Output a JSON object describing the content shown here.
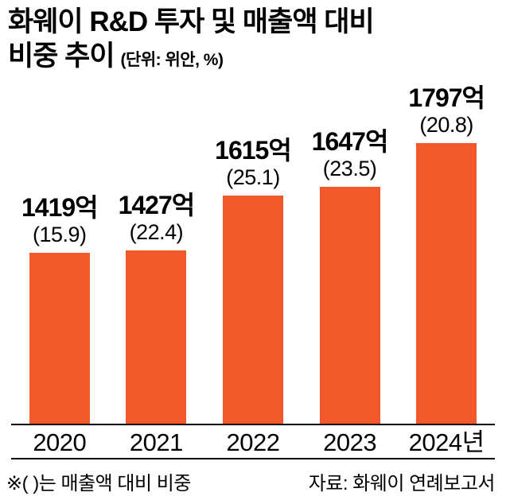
{
  "header": {
    "title_line1": "화웨이 R&D 투자 및 매출액 대비",
    "title_line2": "비중 추이",
    "unit_note": "(단위: 위안, %)"
  },
  "chart_data": {
    "type": "bar",
    "title": "화웨이 R&D 투자 및 매출액 대비 비중 추이",
    "unit": "위안, %",
    "categories": [
      "2020",
      "2021",
      "2022",
      "2023",
      "2024년"
    ],
    "values": [
      1419,
      1427,
      1615,
      1647,
      1797
    ],
    "value_labels": [
      "1419억",
      "1427억",
      "1615억",
      "1647억",
      "1797억"
    ],
    "percentages": [
      15.9,
      22.4,
      25.1,
      23.5,
      20.8
    ],
    "percent_labels": [
      "(15.9)",
      "(22.4)",
      "(25.1)",
      "(23.5)",
      "(20.8)"
    ],
    "bar_color": "#f1582a",
    "legend_position": "none",
    "grid": false,
    "baseline_not_zero": true
  },
  "footer": {
    "note": "※(  )는 매출액 대비 비중",
    "source": "자료: 화웨이 연례보고서"
  }
}
